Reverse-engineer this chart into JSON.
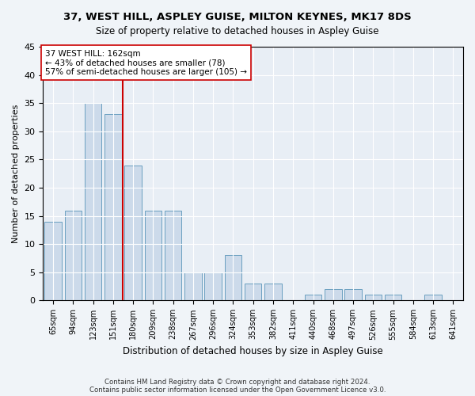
{
  "title1": "37, WEST HILL, ASPLEY GUISE, MILTON KEYNES, MK17 8DS",
  "title2": "Size of property relative to detached houses in Aspley Guise",
  "xlabel": "Distribution of detached houses by size in Aspley Guise",
  "ylabel": "Number of detached properties",
  "categories": [
    "65sqm",
    "94sqm",
    "123sqm",
    "151sqm",
    "180sqm",
    "209sqm",
    "238sqm",
    "267sqm",
    "296sqm",
    "324sqm",
    "353sqm",
    "382sqm",
    "411sqm",
    "440sqm",
    "468sqm",
    "497sqm",
    "526sqm",
    "555sqm",
    "584sqm",
    "613sqm",
    "641sqm"
  ],
  "values": [
    14,
    16,
    35,
    33,
    24,
    16,
    16,
    5,
    5,
    8,
    3,
    3,
    0,
    1,
    2,
    2,
    1,
    1,
    0,
    1,
    0
  ],
  "bar_color": "#ccdaea",
  "bar_edge_color": "#6a9fc0",
  "vline_x": 3.5,
  "vline_color": "#cc0000",
  "annotation_text": "37 WEST HILL: 162sqm\n← 43% of detached houses are smaller (78)\n57% of semi-detached houses are larger (105) →",
  "annotation_box_color": "#ffffff",
  "annotation_box_edge": "#cc0000",
  "ylim": [
    0,
    45
  ],
  "yticks": [
    0,
    5,
    10,
    15,
    20,
    25,
    30,
    35,
    40,
    45
  ],
  "footer1": "Contains HM Land Registry data © Crown copyright and database right 2024.",
  "footer2": "Contains public sector information licensed under the Open Government Licence v3.0.",
  "bg_color": "#f0f4f8",
  "plot_bg_color": "#e8eef5"
}
